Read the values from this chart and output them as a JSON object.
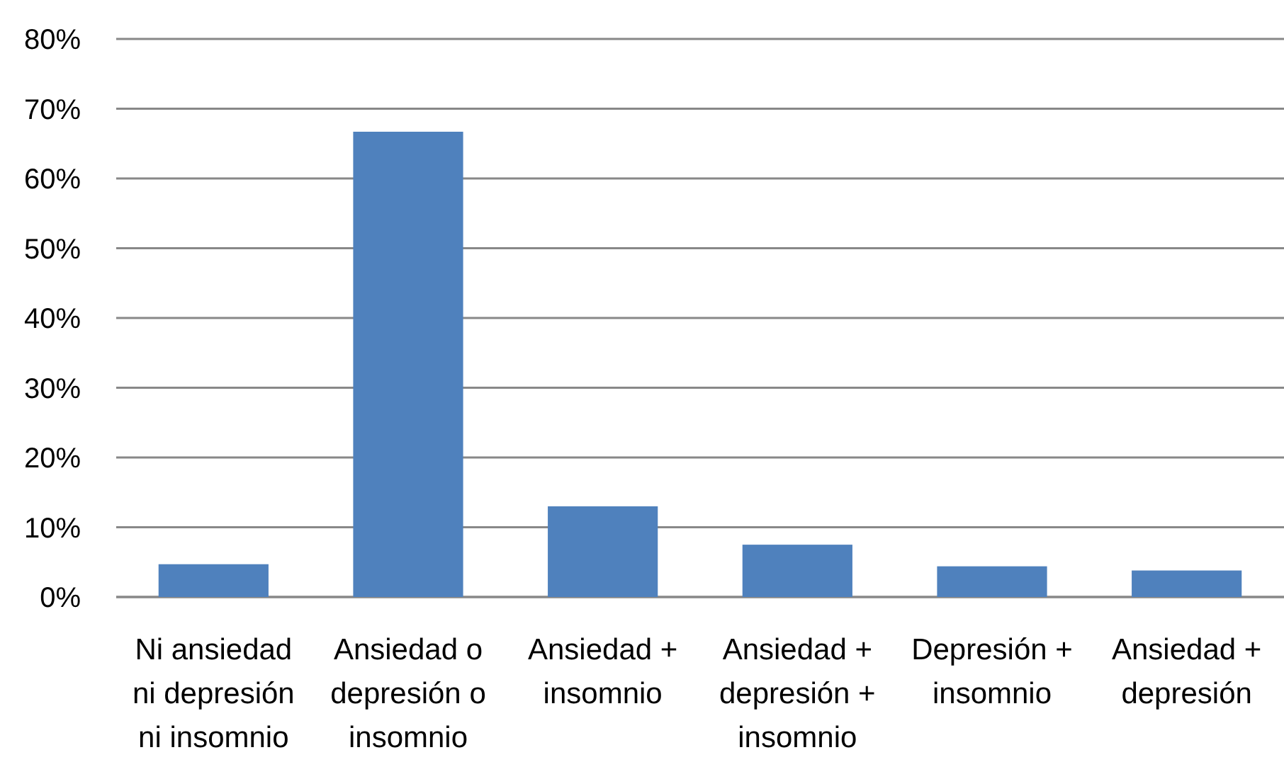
{
  "chart_data": {
    "type": "bar",
    "categories": [
      "Ni ansiedad ni depresión ni insomnio",
      "Ansiedad o depresión o insomnio",
      "Ansiedad + insomnio",
      "Ansiedad + depresión + insomnio",
      "Depresión + insomnio",
      "Ansiedad + depresión"
    ],
    "values": [
      4.7,
      66.7,
      13,
      7.5,
      4.4,
      3.8
    ],
    "color": "#4f81bd",
    "ylim": [
      0,
      80
    ],
    "yticks": [
      {
        "value": 0,
        "label": "0%"
      },
      {
        "value": 10,
        "label": "10%"
      },
      {
        "value": 20,
        "label": "20%"
      },
      {
        "value": 30,
        "label": "30%"
      },
      {
        "value": 40,
        "label": "40%"
      },
      {
        "value": 50,
        "label": "50%"
      },
      {
        "value": 60,
        "label": "60%"
      },
      {
        "value": 70,
        "label": "70%"
      },
      {
        "value": 80,
        "label": "80%"
      }
    ],
    "grid": "y"
  }
}
